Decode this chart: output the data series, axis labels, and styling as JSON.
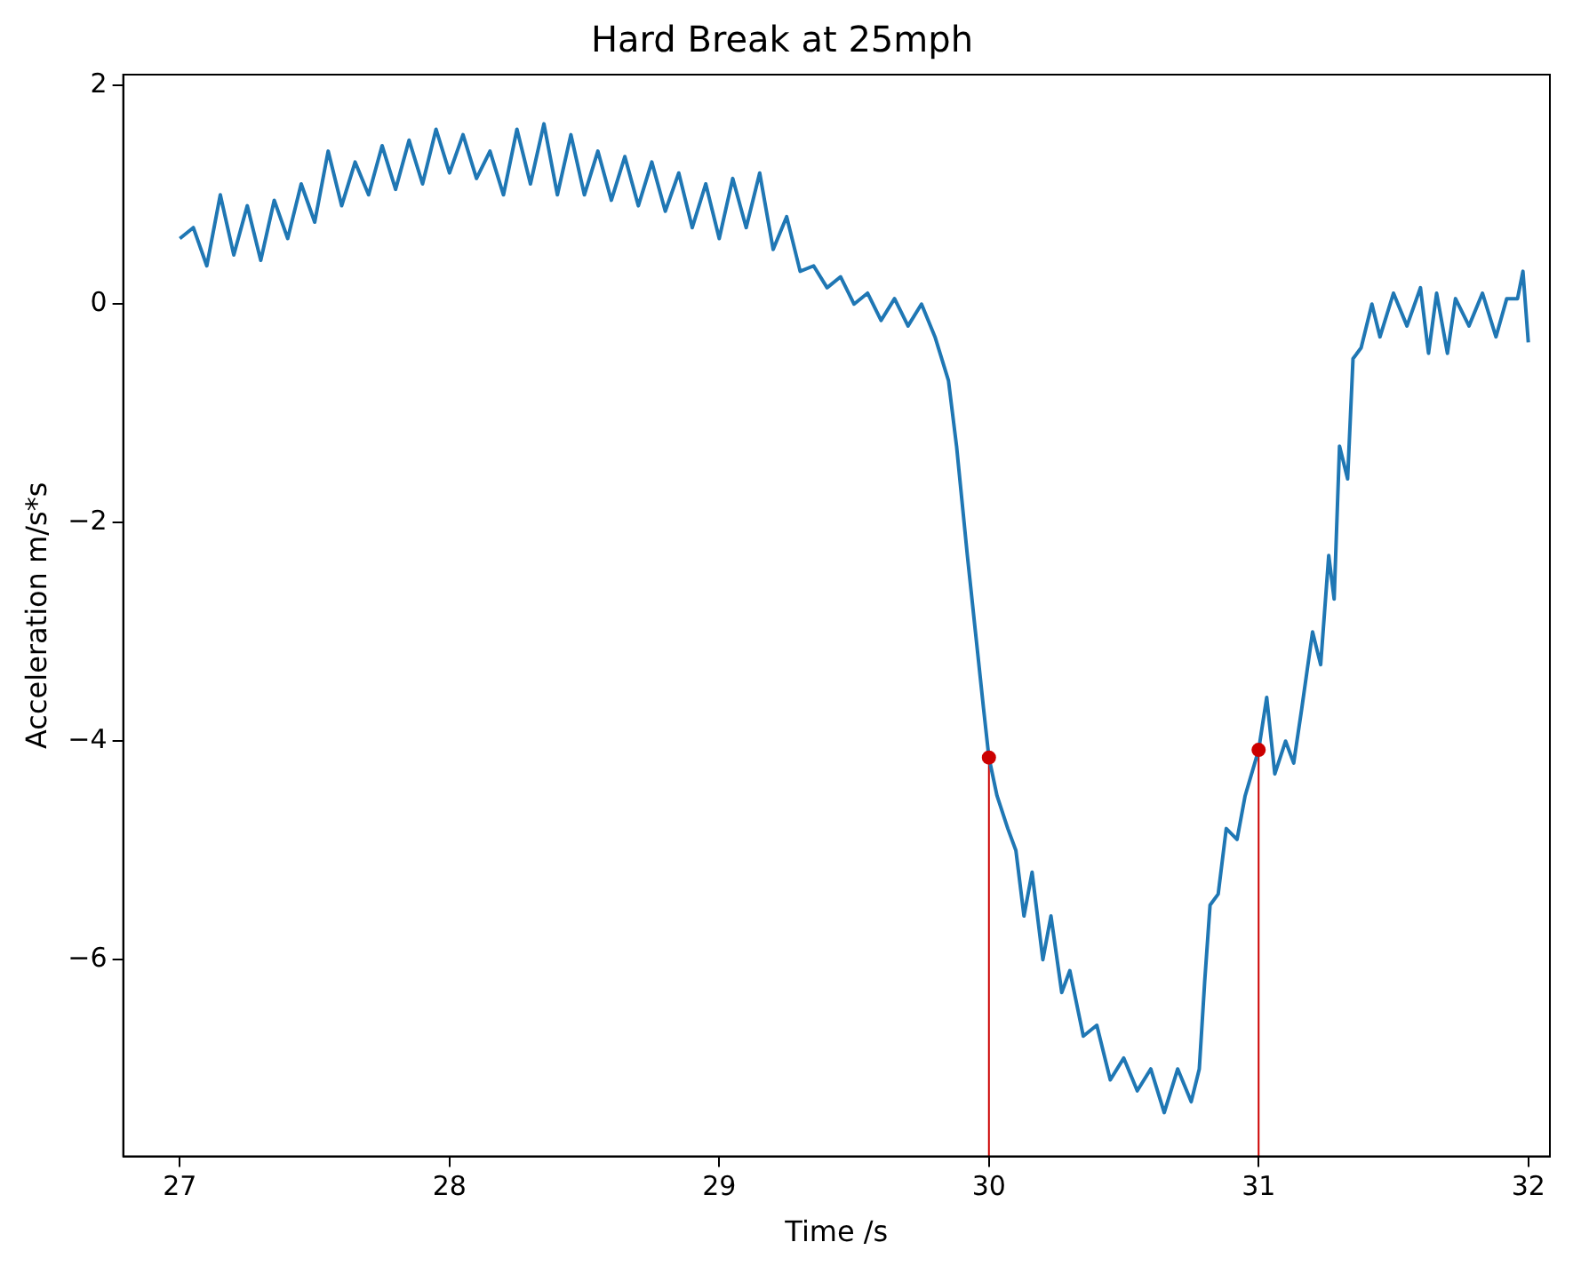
{
  "chart_data": {
    "type": "line",
    "title": "Hard Break at 25mph",
    "xlabel": "Time /s",
    "ylabel": "Acceleration m/s*s",
    "xlim": [
      26.79,
      32.08
    ],
    "ylim": [
      -7.8,
      2.1
    ],
    "xticks": [
      27,
      28,
      29,
      30,
      31,
      32
    ],
    "yticks": [
      -6,
      -4,
      -2,
      0,
      2
    ],
    "grid": false,
    "legend": false,
    "series": [
      {
        "color": "#1f77b4",
        "x": [
          27.0,
          27.05,
          27.1,
          27.15,
          27.2,
          27.25,
          27.3,
          27.35,
          27.4,
          27.45,
          27.5,
          27.55,
          27.6,
          27.65,
          27.7,
          27.75,
          27.8,
          27.85,
          27.9,
          27.95,
          28.0,
          28.05,
          28.1,
          28.15,
          28.2,
          28.25,
          28.3,
          28.35,
          28.4,
          28.45,
          28.5,
          28.55,
          28.6,
          28.65,
          28.7,
          28.75,
          28.8,
          28.85,
          28.9,
          28.95,
          29.0,
          29.05,
          29.1,
          29.15,
          29.2,
          29.25,
          29.3,
          29.35,
          29.4,
          29.45,
          29.5,
          29.55,
          29.6,
          29.65,
          29.7,
          29.75,
          29.8,
          29.85,
          29.88,
          29.92,
          29.95,
          29.98,
          30.0,
          30.03,
          30.07,
          30.1,
          30.13,
          30.16,
          30.2,
          30.23,
          30.27,
          30.3,
          30.35,
          30.4,
          30.45,
          30.5,
          30.55,
          30.6,
          30.65,
          30.7,
          30.75,
          30.78,
          30.8,
          30.82,
          30.85,
          30.88,
          30.92,
          30.95,
          31.0,
          31.03,
          31.06,
          31.1,
          31.13,
          31.16,
          31.2,
          31.23,
          31.26,
          31.28,
          31.3,
          31.33,
          31.35,
          31.38,
          31.42,
          31.45,
          31.5,
          31.55,
          31.6,
          31.63,
          31.66,
          31.7,
          31.73,
          31.78,
          31.83,
          31.88,
          31.92,
          31.96,
          31.98,
          32.0
        ],
        "values": [
          0.6,
          0.7,
          0.35,
          1.0,
          0.45,
          0.9,
          0.4,
          0.95,
          0.6,
          1.1,
          0.75,
          1.4,
          0.9,
          1.3,
          1.0,
          1.45,
          1.05,
          1.5,
          1.1,
          1.6,
          1.2,
          1.55,
          1.15,
          1.4,
          1.0,
          1.6,
          1.1,
          1.65,
          1.0,
          1.55,
          1.0,
          1.4,
          0.95,
          1.35,
          0.9,
          1.3,
          0.85,
          1.2,
          0.7,
          1.1,
          0.6,
          1.15,
          0.7,
          1.2,
          0.5,
          0.8,
          0.3,
          0.35,
          0.15,
          0.25,
          0.0,
          0.1,
          -0.15,
          0.05,
          -0.2,
          0.0,
          -0.3,
          -0.7,
          -1.3,
          -2.3,
          -3.0,
          -3.7,
          -4.15,
          -4.5,
          -4.8,
          -5.0,
          -5.6,
          -5.2,
          -6.0,
          -5.6,
          -6.3,
          -6.1,
          -6.7,
          -6.6,
          -7.1,
          -6.9,
          -7.2,
          -7.0,
          -7.4,
          -7.0,
          -7.3,
          -7.0,
          -6.2,
          -5.5,
          -5.4,
          -4.8,
          -4.9,
          -4.5,
          -4.08,
          -3.6,
          -4.3,
          -4.0,
          -4.2,
          -3.7,
          -3.0,
          -3.3,
          -2.3,
          -2.7,
          -1.3,
          -1.6,
          -0.5,
          -0.4,
          0.0,
          -0.3,
          0.1,
          -0.2,
          0.15,
          -0.45,
          0.1,
          -0.45,
          0.05,
          -0.2,
          0.1,
          -0.3,
          0.05,
          0.05,
          0.3,
          -0.35
        ]
      },
      {
        "type": "scatter",
        "color": "#cc0000",
        "x": [
          30,
          31
        ],
        "values": [
          -4.15,
          -4.08
        ]
      }
    ],
    "ref_lines": [
      {
        "axis": "x",
        "value": 30,
        "color": "#cc0000"
      },
      {
        "axis": "x",
        "value": 31,
        "color": "#cc0000"
      }
    ]
  }
}
